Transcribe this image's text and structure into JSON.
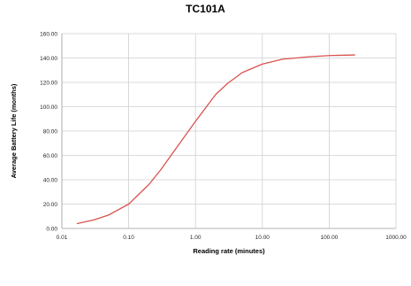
{
  "chart_data": {
    "type": "line",
    "title": "TC101A",
    "xlabel": "Reading rate (minutes)",
    "ylabel": "Average Battery Life (months)",
    "x_scale": "log",
    "xlim": [
      0.01,
      1000
    ],
    "ylim": [
      0,
      160
    ],
    "x_ticks": [
      "0.01",
      "0.10",
      "1.00",
      "10.00",
      "100.00",
      "1000.00"
    ],
    "y_ticks": [
      "0.00",
      "20.00",
      "40.00",
      "60.00",
      "80.00",
      "100.00",
      "120.00",
      "140.00",
      "160.00"
    ],
    "grid": true,
    "legend": "none",
    "series": [
      {
        "color": "#d9534f",
        "x": [
          0.017,
          0.03,
          0.05,
          0.1,
          0.2,
          0.3,
          0.5,
          1,
          2,
          3,
          5,
          10,
          20,
          50,
          100,
          240
        ],
        "y": [
          4,
          7,
          11,
          20,
          36,
          48,
          65,
          88,
          110,
          119,
          128,
          135,
          139,
          141,
          142,
          142.5
        ]
      }
    ]
  }
}
